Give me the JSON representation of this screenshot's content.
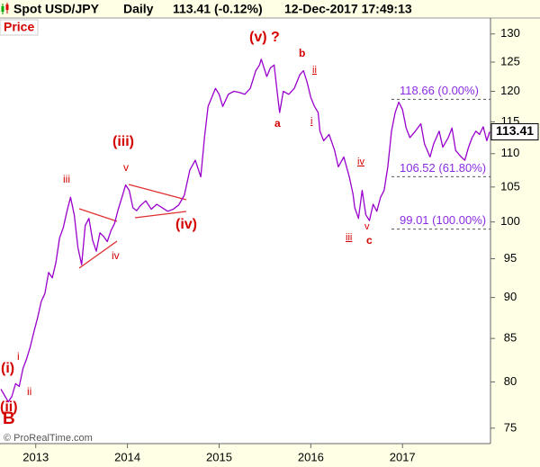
{
  "chart_data": {
    "type": "line",
    "header": [
      "Spot USD/JPY",
      "Daily",
      "113.41 (-0.12%)",
      "12-Dec-2017 17:49:13"
    ],
    "panel_label": "Price",
    "footer": "© ProRealTime.com",
    "log_scale": true,
    "grid": false,
    "xlim": [
      2012.61,
      2017.96
    ],
    "xticks": [
      2013,
      2014,
      2015,
      2016,
      2017
    ],
    "ylim": [
      73.4,
      131.6
    ],
    "yticks": [
      75,
      80,
      85,
      90,
      95,
      100,
      105,
      110,
      115,
      120,
      125,
      130
    ],
    "x": [
      2012.62,
      2012.66,
      2012.7,
      2012.74,
      2012.78,
      2012.82,
      2012.86,
      2012.9,
      2012.94,
      2012.98,
      2013.02,
      2013.06,
      2013.1,
      2013.14,
      2013.18,
      2013.22,
      2013.26,
      2013.3,
      2013.34,
      2013.38,
      2013.42,
      2013.46,
      2013.5,
      2013.54,
      2013.58,
      2013.62,
      2013.66,
      2013.7,
      2013.74,
      2013.78,
      2013.82,
      2013.86,
      2013.9,
      2013.94,
      2013.98,
      2014.02,
      2014.06,
      2014.1,
      2014.14,
      2014.2,
      2014.26,
      2014.32,
      2014.38,
      2014.44,
      2014.5,
      2014.56,
      2014.62,
      2014.68,
      2014.74,
      2014.8,
      2014.84,
      2014.88,
      2014.92,
      2014.96,
      2015.0,
      2015.04,
      2015.1,
      2015.16,
      2015.22,
      2015.28,
      2015.34,
      2015.4,
      2015.44,
      2015.46,
      2015.52,
      2015.56,
      2015.6,
      2015.64,
      2015.66,
      2015.7,
      2015.76,
      2015.82,
      2015.88,
      2015.92,
      2015.96,
      2016.0,
      2016.04,
      2016.08,
      2016.1,
      2016.14,
      2016.2,
      2016.26,
      2016.3,
      2016.36,
      2016.42,
      2016.46,
      2016.48,
      2016.52,
      2016.56,
      2016.6,
      2016.64,
      2016.68,
      2016.72,
      2016.76,
      2016.8,
      2016.84,
      2016.88,
      2016.92,
      2016.96,
      2017.0,
      2017.04,
      2017.08,
      2017.14,
      2017.2,
      2017.24,
      2017.3,
      2017.34,
      2017.4,
      2017.44,
      2017.5,
      2017.54,
      2017.58,
      2017.64,
      2017.68,
      2017.72,
      2017.76,
      2017.8,
      2017.84,
      2017.88,
      2017.92,
      2017.95
    ],
    "series": [
      {
        "name": "USD/JPY",
        "color": "#9900cc",
        "values": [
          79.2,
          78.5,
          77.8,
          78.4,
          79.8,
          79.5,
          81.5,
          82.6,
          84.0,
          85.8,
          87.5,
          89.5,
          90.5,
          93.2,
          92.5,
          94.5,
          97.8,
          99.2,
          101.5,
          103.5,
          101.0,
          96.5,
          94.2,
          99.5,
          100.5,
          97.5,
          96.0,
          98.5,
          98.0,
          97.3,
          98.8,
          99.8,
          101.8,
          103.5,
          105.3,
          104.5,
          102.0,
          101.6,
          102.3,
          103.0,
          101.8,
          102.5,
          102.0,
          101.5,
          101.8,
          102.4,
          103.8,
          107.5,
          109.0,
          106.5,
          112.5,
          117.5,
          119.0,
          120.5,
          119.5,
          117.5,
          119.5,
          120.0,
          119.8,
          119.5,
          120.5,
          123.5,
          124.5,
          125.5,
          122.5,
          124.0,
          124.5,
          119.0,
          116.5,
          120.0,
          119.5,
          120.5,
          122.8,
          123.5,
          121.5,
          119.0,
          117.5,
          116.5,
          113.5,
          112.0,
          113.0,
          110.5,
          108.0,
          109.5,
          106.5,
          104.0,
          102.0,
          100.5,
          104.5,
          101.0,
          100.2,
          102.5,
          101.5,
          103.5,
          104.5,
          108.0,
          113.5,
          116.5,
          118.2,
          117.0,
          114.0,
          112.5,
          113.5,
          114.7,
          111.5,
          109.5,
          111.5,
          113.5,
          111.0,
          112.5,
          114.0,
          110.5,
          109.5,
          109.0,
          111.0,
          112.5,
          113.5,
          113.0,
          114.2,
          112.0,
          113.41
        ]
      }
    ],
    "levels": [
      {
        "value": 118.66,
        "label": "118.66 (0.00%)"
      },
      {
        "value": 106.52,
        "label": "106.52 (61.80%)"
      },
      {
        "value": 99.01,
        "label": "99.01 (100.00%)"
      }
    ],
    "level_color": "#8a2be2",
    "annotations": [
      "(i)",
      "i",
      "ii",
      "(ii)",
      "B",
      "iii",
      "iv",
      "(iii)",
      "v",
      "(iv)",
      "(v) ?",
      "a",
      "b",
      "ii",
      "i",
      "iv",
      "iii",
      "v",
      "c"
    ]
  }
}
